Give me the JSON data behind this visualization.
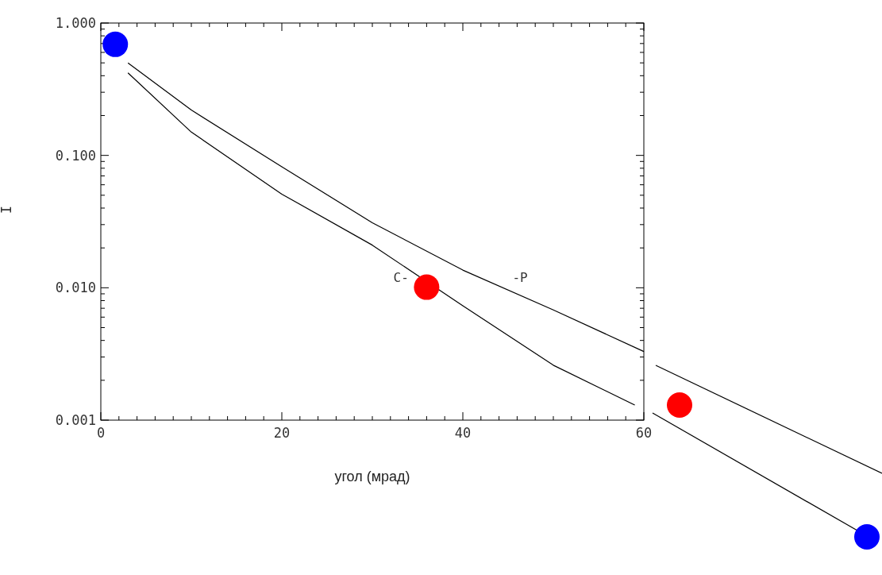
{
  "chart_data": {
    "type": "line",
    "xlabel": "угол (мрад)",
    "ylabel": "I",
    "log": "y",
    "xlim": [
      0,
      60
    ],
    "ylim": [
      0.001,
      1
    ],
    "xticks": [
      0,
      {
        "value": 2,
        "label": null
      },
      {
        "value": 4,
        "label": null
      },
      {
        "value": 6,
        "label": null
      },
      {
        "value": 8,
        "label": null
      },
      {
        "value": 10,
        "label": null
      },
      {
        "value": 12,
        "label": null
      },
      {
        "value": 14,
        "label": null
      },
      {
        "value": 16,
        "label": null
      },
      {
        "value": 18,
        "label": null
      },
      20,
      {
        "value": 22,
        "label": null
      },
      {
        "value": 24,
        "label": null
      },
      {
        "value": 26,
        "label": null
      },
      {
        "value": 28,
        "label": null
      },
      {
        "value": 30,
        "label": null
      },
      {
        "value": 32,
        "label": null
      },
      {
        "value": 34,
        "label": null
      },
      {
        "value": 36,
        "label": null
      },
      {
        "value": 38,
        "label": null
      },
      40,
      {
        "value": 42,
        "label": null
      },
      {
        "value": 44,
        "label": null
      },
      {
        "value": 46,
        "label": null
      },
      {
        "value": 48,
        "label": null
      },
      {
        "value": 50,
        "label": null
      },
      {
        "value": 52,
        "label": null
      },
      {
        "value": 54,
        "label": null
      },
      {
        "value": 56,
        "label": null
      },
      {
        "value": 58,
        "label": null
      },
      60
    ],
    "yticks": [
      {
        "value": 0.001,
        "label": "0.001"
      },
      {
        "value": 0.002,
        "label": null
      },
      {
        "value": 0.003,
        "label": null
      },
      {
        "value": 0.004,
        "label": null
      },
      {
        "value": 0.005,
        "label": null
      },
      {
        "value": 0.006,
        "label": null
      },
      {
        "value": 0.007,
        "label": null
      },
      {
        "value": 0.008,
        "label": null
      },
      {
        "value": 0.009,
        "label": null
      },
      {
        "value": 0.01,
        "label": "0.010"
      },
      {
        "value": 0.02,
        "label": null
      },
      {
        "value": 0.03,
        "label": null
      },
      {
        "value": 0.04,
        "label": null
      },
      {
        "value": 0.05,
        "label": null
      },
      {
        "value": 0.06,
        "label": null
      },
      {
        "value": 0.07,
        "label": null
      },
      {
        "value": 0.08,
        "label": null
      },
      {
        "value": 0.09,
        "label": null
      },
      {
        "value": 0.1,
        "label": "0.100"
      },
      {
        "value": 0.2,
        "label": null
      },
      {
        "value": 0.3,
        "label": null
      },
      {
        "value": 0.4,
        "label": null
      },
      {
        "value": 0.5,
        "label": null
      },
      {
        "value": 0.6,
        "label": null
      },
      {
        "value": 0.7,
        "label": null
      },
      {
        "value": 0.8,
        "label": null
      },
      {
        "value": 0.9,
        "label": null
      },
      {
        "value": 1,
        "label": "1.000"
      }
    ],
    "series": [
      {
        "color": "#000000",
        "x": [
          3,
          10,
          20,
          30,
          40,
          50,
          60
        ],
        "values": [
          0.5,
          0.22,
          0.082,
          0.031,
          0.0136,
          0.0068,
          0.0033
        ]
      },
      {
        "color": "#000000",
        "x": [
          3,
          10,
          20,
          30,
          40,
          50,
          59
        ],
        "values": [
          0.42,
          0.15,
          0.051,
          0.021,
          0.0073,
          0.0026,
          0.0013
        ]
      },
      {
        "type": "scatter",
        "color": "#0000ff",
        "marker": "circle",
        "x": [
          1.6
        ],
        "values": [
          0.69
        ]
      },
      {
        "type": "scatter",
        "color": "#ff0000",
        "marker": "circle",
        "x": [
          36
        ],
        "values": [
          0.0101
        ]
      }
    ],
    "annotations": [
      "C-",
      "-P"
    ]
  }
}
